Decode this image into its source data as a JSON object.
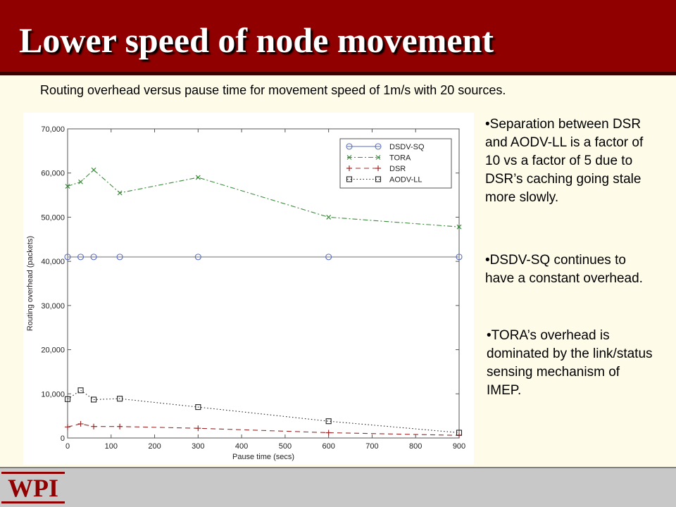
{
  "slide": {
    "title": "Lower speed of node movement",
    "subtitle": "Routing overhead versus pause time for movement speed of 1m/s with 20 sources.",
    "bullets": [
      "•Separation between DSR and AODV-LL is a factor of 10 vs a factor of 5 due to DSR’s caching going stale more slowly.",
      "•DSDV-SQ continues to have a constant overhead.",
      "•TORA’s overhead is dominated by the link/status sensing mechanism of IMEP."
    ],
    "logo_text": "WPI"
  },
  "colors": {
    "title_bar": "#900000",
    "background": "#fefbe9",
    "footer": "#c8c8c8",
    "logo": "#900000"
  },
  "chart_data": {
    "type": "line",
    "title": "",
    "xlabel": "Pause time (secs)",
    "ylabel": "Routing overhead (packets)",
    "xlim": [
      0,
      900
    ],
    "ylim": [
      0,
      70000
    ],
    "x_ticks": [
      0,
      100,
      200,
      300,
      400,
      500,
      600,
      700,
      800,
      900
    ],
    "x_tick_labels": [
      "0",
      "100",
      "200",
      "300",
      "400",
      "500",
      "600",
      "700",
      "800",
      "900"
    ],
    "y_ticks": [
      0,
      10000,
      20000,
      30000,
      40000,
      50000,
      60000,
      70000
    ],
    "y_tick_labels": [
      "0",
      "10,000",
      "20,000",
      "30,000",
      "40,000",
      "50,000",
      "60,000",
      "70,000"
    ],
    "grid": false,
    "legend_position": "top-right",
    "series": [
      {
        "name": "DSDV-SQ",
        "color": "#5a6ebe",
        "marker": "circle",
        "line": "solid",
        "x": [
          0,
          30,
          60,
          120,
          300,
          600,
          900
        ],
        "y": [
          41000,
          41000,
          41000,
          41000,
          41000,
          41000,
          41000
        ]
      },
      {
        "name": "TORA",
        "color": "#3c8c3c",
        "marker": "x",
        "line": "dashdot",
        "x": [
          0,
          30,
          60,
          120,
          300,
          600,
          900
        ],
        "y": [
          57000,
          58000,
          60700,
          55500,
          59000,
          50000,
          47800
        ]
      },
      {
        "name": "DSR",
        "color": "#a02828",
        "marker": "plus",
        "line": "dashed",
        "x": [
          0,
          30,
          60,
          120,
          300,
          600,
          900
        ],
        "y": [
          2500,
          3200,
          2600,
          2600,
          2200,
          1200,
          600
        ]
      },
      {
        "name": "AODV-LL",
        "color": "#222222",
        "marker": "square",
        "line": "dotted",
        "x": [
          0,
          30,
          60,
          120,
          300,
          600,
          900
        ],
        "y": [
          8800,
          10800,
          8700,
          8900,
          7000,
          3800,
          1200
        ]
      }
    ]
  }
}
